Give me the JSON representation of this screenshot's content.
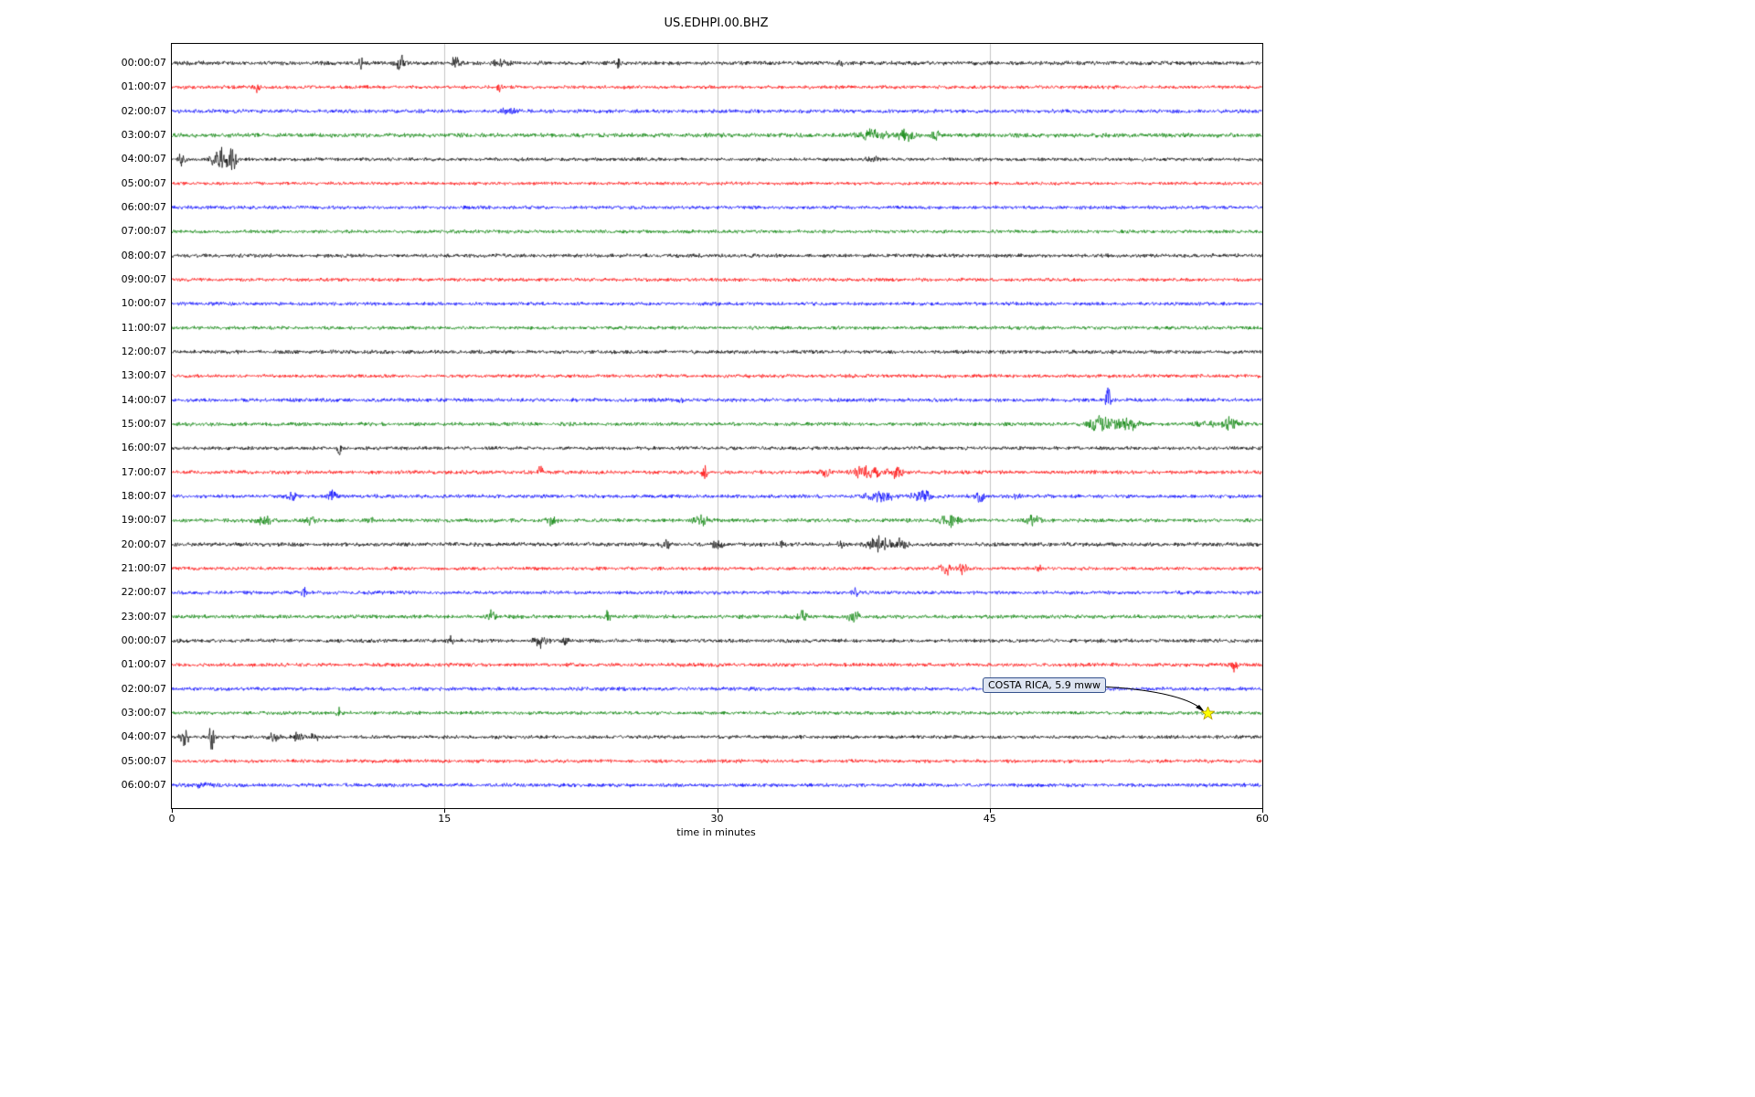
{
  "title": "US.EDHPI.00.BHZ",
  "xlabel": "time in minutes",
  "annotation": {
    "label": "COSTA RICA, 5.9 mww"
  },
  "chart_data": {
    "type": "line",
    "subtype": "seismogram-helicorder",
    "title": "US.EDHPI.00.BHZ",
    "xlabel": "time in minutes",
    "xlim": [
      0,
      60
    ],
    "xticks": [
      0,
      15,
      30,
      45,
      60
    ],
    "grid": "vertical gridlines at 15, 30, 45",
    "row_duration_minutes": 60,
    "colors": {
      "black": "#000000",
      "red": "#ff0000",
      "blue": "#0000ff",
      "green": "#008000"
    },
    "star_color": "#ffff00",
    "annotation": {
      "label": "COSTA RICA, 5.9 mww",
      "row": 27,
      "minute": 57
    },
    "rows": [
      {
        "label": "00:00:07",
        "color": "black",
        "noise": 1.6,
        "events": [
          [
            10.4,
            0.25,
            5
          ],
          [
            12.6,
            0.5,
            6
          ],
          [
            15.6,
            0.35,
            5
          ],
          [
            18.0,
            0.8,
            2
          ],
          [
            24.5,
            0.2,
            4
          ],
          [
            36.8,
            0.3,
            3.5
          ]
        ]
      },
      {
        "label": "01:00:07",
        "color": "red",
        "noise": 1.4,
        "events": [
          [
            4.7,
            0.25,
            4
          ],
          [
            18.0,
            0.2,
            5
          ]
        ]
      },
      {
        "label": "02:00:07",
        "color": "blue",
        "noise": 1.5,
        "events": [
          [
            18.5,
            1.0,
            1.5
          ]
        ]
      },
      {
        "label": "03:00:07",
        "color": "green",
        "noise": 1.7,
        "events": [
          [
            38.5,
            1.2,
            4.5
          ],
          [
            40.3,
            0.8,
            4
          ],
          [
            42.0,
            0.25,
            6
          ]
        ]
      },
      {
        "label": "04:00:07",
        "color": "black",
        "noise": 1.4,
        "events": [
          [
            0.5,
            0.3,
            5
          ],
          [
            2.6,
            0.6,
            11
          ],
          [
            3.3,
            0.4,
            9
          ],
          [
            38.5,
            0.5,
            2.5
          ]
        ]
      },
      {
        "label": "05:00:07",
        "color": "red",
        "noise": 1.3,
        "events": []
      },
      {
        "label": "06:00:07",
        "color": "blue",
        "noise": 1.4,
        "events": []
      },
      {
        "label": "07:00:07",
        "color": "green",
        "noise": 1.4,
        "events": []
      },
      {
        "label": "08:00:07",
        "color": "black",
        "noise": 1.5,
        "events": []
      },
      {
        "label": "09:00:07",
        "color": "red",
        "noise": 1.4,
        "events": []
      },
      {
        "label": "10:00:07",
        "color": "blue",
        "noise": 1.4,
        "events": []
      },
      {
        "label": "11:00:07",
        "color": "green",
        "noise": 1.4,
        "events": []
      },
      {
        "label": "12:00:07",
        "color": "black",
        "noise": 1.5,
        "events": []
      },
      {
        "label": "13:00:07",
        "color": "red",
        "noise": 1.4,
        "events": []
      },
      {
        "label": "14:00:07",
        "color": "blue",
        "noise": 1.5,
        "events": [
          [
            28.0,
            0.3,
            2.5
          ],
          [
            51.5,
            0.25,
            13
          ]
        ]
      },
      {
        "label": "15:00:07",
        "color": "green",
        "noise": 1.5,
        "events": [
          [
            51.2,
            1.2,
            6
          ],
          [
            52.6,
            0.9,
            4.5
          ],
          [
            56.8,
            0.7,
            3.5
          ],
          [
            58.3,
            0.9,
            4.5
          ]
        ]
      },
      {
        "label": "16:00:07",
        "color": "black",
        "noise": 1.4,
        "events": [
          [
            9.2,
            0.2,
            5.5
          ]
        ]
      },
      {
        "label": "17:00:07",
        "color": "red",
        "noise": 1.5,
        "events": [
          [
            20.3,
            0.3,
            4
          ],
          [
            29.3,
            0.3,
            4
          ],
          [
            36.0,
            0.5,
            4.5
          ],
          [
            38.2,
            1.2,
            4.5
          ],
          [
            39.8,
            0.7,
            5
          ]
        ]
      },
      {
        "label": "18:00:07",
        "color": "blue",
        "noise": 1.5,
        "events": [
          [
            6.6,
            0.4,
            3.5
          ],
          [
            8.8,
            0.4,
            3.5
          ],
          [
            38.9,
            1.2,
            4
          ],
          [
            41.2,
            0.9,
            4
          ],
          [
            44.4,
            0.7,
            3.5
          ],
          [
            46.6,
            0.4,
            3
          ]
        ]
      },
      {
        "label": "19:00:07",
        "color": "green",
        "noise": 1.5,
        "events": [
          [
            5.0,
            0.7,
            3.5
          ],
          [
            7.6,
            0.4,
            3
          ],
          [
            11.0,
            0.4,
            3
          ],
          [
            20.9,
            0.4,
            4
          ],
          [
            29.1,
            0.7,
            3.5
          ],
          [
            42.8,
            0.9,
            5
          ],
          [
            47.4,
            0.7,
            3.5
          ]
        ]
      },
      {
        "label": "20:00:07",
        "color": "black",
        "noise": 1.6,
        "events": [
          [
            27.2,
            0.4,
            3.5
          ],
          [
            30.0,
            0.4,
            3.5
          ],
          [
            33.6,
            0.3,
            2.5
          ],
          [
            36.8,
            0.3,
            2.5
          ],
          [
            38.9,
            1.0,
            6
          ],
          [
            40.1,
            0.5,
            5
          ]
        ]
      },
      {
        "label": "21:00:07",
        "color": "red",
        "noise": 1.4,
        "events": [
          [
            42.6,
            0.5,
            5
          ],
          [
            43.5,
            0.3,
            4
          ],
          [
            47.7,
            0.3,
            3
          ]
        ]
      },
      {
        "label": "22:00:07",
        "color": "blue",
        "noise": 1.5,
        "events": [
          [
            7.3,
            0.25,
            4
          ],
          [
            37.6,
            0.3,
            2.5
          ]
        ]
      },
      {
        "label": "23:00:07",
        "color": "green",
        "noise": 1.5,
        "events": [
          [
            17.6,
            0.4,
            4
          ],
          [
            24.0,
            0.2,
            5
          ],
          [
            34.7,
            0.5,
            3.5
          ],
          [
            37.5,
            0.5,
            4.5
          ]
        ]
      },
      {
        "label": "00:00:07",
        "color": "black",
        "noise": 1.5,
        "events": [
          [
            15.3,
            0.3,
            2.5
          ],
          [
            20.3,
            0.6,
            4.5
          ],
          [
            21.6,
            0.3,
            3.5
          ]
        ]
      },
      {
        "label": "01:00:07",
        "color": "red",
        "noise": 1.5,
        "events": [
          [
            58.5,
            0.35,
            4
          ]
        ]
      },
      {
        "label": "02:00:07",
        "color": "blue",
        "noise": 1.5,
        "events": []
      },
      {
        "label": "03:00:07",
        "color": "green",
        "noise": 1.4,
        "events": [
          [
            9.2,
            0.2,
            4.5
          ]
        ]
      },
      {
        "label": "04:00:07",
        "color": "black",
        "noise": 1.4,
        "events": [
          [
            0.7,
            0.4,
            7
          ],
          [
            2.2,
            0.25,
            13
          ],
          [
            5.6,
            0.5,
            3.5
          ],
          [
            6.9,
            0.5,
            3.5
          ],
          [
            7.9,
            0.4,
            3.5
          ]
        ]
      },
      {
        "label": "05:00:07",
        "color": "red",
        "noise": 1.4,
        "events": []
      },
      {
        "label": "06:00:07",
        "color": "blue",
        "noise": 1.5,
        "events": [
          [
            2.0,
            1.5,
            1.2
          ]
        ]
      }
    ]
  }
}
